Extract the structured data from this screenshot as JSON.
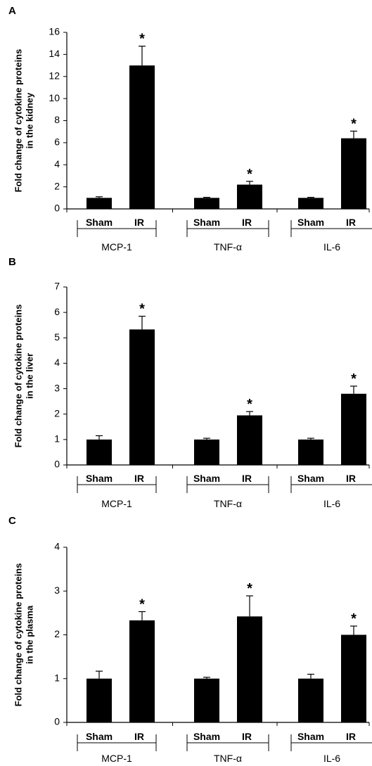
{
  "chart_data": [
    {
      "type": "bar",
      "panel_label": "A",
      "ylabel_lines": [
        "Fold change of cytokine proteins",
        "in the kidney"
      ],
      "ylim": [
        0,
        16
      ],
      "yticks": [
        0,
        2,
        4,
        6,
        8,
        10,
        12,
        14,
        16
      ],
      "groups": [
        "MCP-1",
        "TNF-α",
        "IL-6"
      ],
      "conditions": [
        "Sham",
        "IR"
      ],
      "values": [
        [
          1.0,
          13.0
        ],
        [
          1.0,
          2.2
        ],
        [
          1.0,
          6.4
        ]
      ],
      "errors": [
        [
          0.1,
          1.75
        ],
        [
          0.05,
          0.3
        ],
        [
          0.05,
          0.65
        ]
      ],
      "significance": [
        [
          false,
          true
        ],
        [
          false,
          true
        ],
        [
          false,
          true
        ]
      ],
      "significance_marker": "*",
      "bar_color": "#000000"
    },
    {
      "type": "bar",
      "panel_label": "B",
      "ylabel_lines": [
        "Fold change of cytokine proteins",
        "in the liver"
      ],
      "ylim": [
        0,
        7
      ],
      "yticks": [
        0,
        1,
        2,
        3,
        4,
        5,
        6,
        7
      ],
      "groups": [
        "MCP-1",
        "TNF-α",
        "IL-6"
      ],
      "conditions": [
        "Sham",
        "IR"
      ],
      "values": [
        [
          1.0,
          5.33
        ],
        [
          1.0,
          1.95
        ],
        [
          1.0,
          2.8
        ]
      ],
      "errors": [
        [
          0.15,
          0.52
        ],
        [
          0.05,
          0.15
        ],
        [
          0.05,
          0.3
        ]
      ],
      "significance": [
        [
          false,
          true
        ],
        [
          false,
          true
        ],
        [
          false,
          true
        ]
      ],
      "significance_marker": "*",
      "bar_color": "#000000"
    },
    {
      "type": "bar",
      "panel_label": "C",
      "ylabel_lines": [
        "Fold change of cytokine proteins",
        "in the plasma"
      ],
      "ylim": [
        0,
        4
      ],
      "yticks": [
        0,
        1,
        2,
        3,
        4
      ],
      "groups": [
        "MCP-1",
        "TNF-α",
        "IL-6"
      ],
      "conditions": [
        "Sham",
        "IR"
      ],
      "values": [
        [
          1.0,
          2.33
        ],
        [
          1.0,
          2.42
        ],
        [
          1.0,
          2.0
        ]
      ],
      "errors": [
        [
          0.17,
          0.2
        ],
        [
          0.03,
          0.47
        ],
        [
          0.1,
          0.2
        ]
      ],
      "significance": [
        [
          false,
          true
        ],
        [
          false,
          true
        ],
        [
          false,
          true
        ]
      ],
      "significance_marker": "*",
      "bar_color": "#000000"
    }
  ]
}
